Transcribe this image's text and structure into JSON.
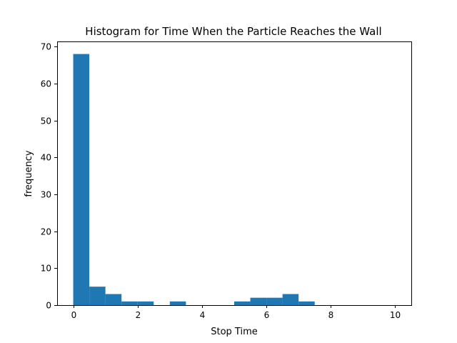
{
  "chart_data": {
    "type": "histogram",
    "title": "Histogram for Time When the Particle Reaches the Wall",
    "xlabel": "Stop Time",
    "ylabel": "frequency",
    "xlim": [
      -0.5,
      10.5
    ],
    "ylim": [
      0,
      71.4
    ],
    "bin_width": 0.5,
    "bin_edges_start": 0,
    "bins": [
      {
        "x0": 0.0,
        "x1": 0.5,
        "count": 68
      },
      {
        "x0": 0.5,
        "x1": 1.0,
        "count": 5
      },
      {
        "x0": 1.0,
        "x1": 1.5,
        "count": 3
      },
      {
        "x0": 1.5,
        "x1": 2.0,
        "count": 1
      },
      {
        "x0": 2.0,
        "x1": 2.5,
        "count": 1
      },
      {
        "x0": 2.5,
        "x1": 3.0,
        "count": 0
      },
      {
        "x0": 3.0,
        "x1": 3.5,
        "count": 1
      },
      {
        "x0": 3.5,
        "x1": 4.0,
        "count": 0
      },
      {
        "x0": 4.0,
        "x1": 4.5,
        "count": 0
      },
      {
        "x0": 4.5,
        "x1": 5.0,
        "count": 0
      },
      {
        "x0": 5.0,
        "x1": 5.5,
        "count": 1
      },
      {
        "x0": 5.5,
        "x1": 6.0,
        "count": 2
      },
      {
        "x0": 6.0,
        "x1": 6.5,
        "count": 2
      },
      {
        "x0": 6.5,
        "x1": 7.0,
        "count": 3
      },
      {
        "x0": 7.0,
        "x1": 7.5,
        "count": 1
      },
      {
        "x0": 7.5,
        "x1": 8.0,
        "count": 0
      },
      {
        "x0": 8.0,
        "x1": 8.5,
        "count": 0
      },
      {
        "x0": 8.5,
        "x1": 9.0,
        "count": 0
      },
      {
        "x0": 9.0,
        "x1": 9.5,
        "count": 0
      },
      {
        "x0": 9.5,
        "x1": 10.0,
        "count": 0
      }
    ],
    "x_ticks": [
      0,
      2,
      4,
      6,
      8,
      10
    ],
    "y_ticks": [
      0,
      10,
      20,
      30,
      40,
      50,
      60,
      70
    ],
    "bar_color": "#1f77b4",
    "grid": false,
    "legend": "none"
  }
}
